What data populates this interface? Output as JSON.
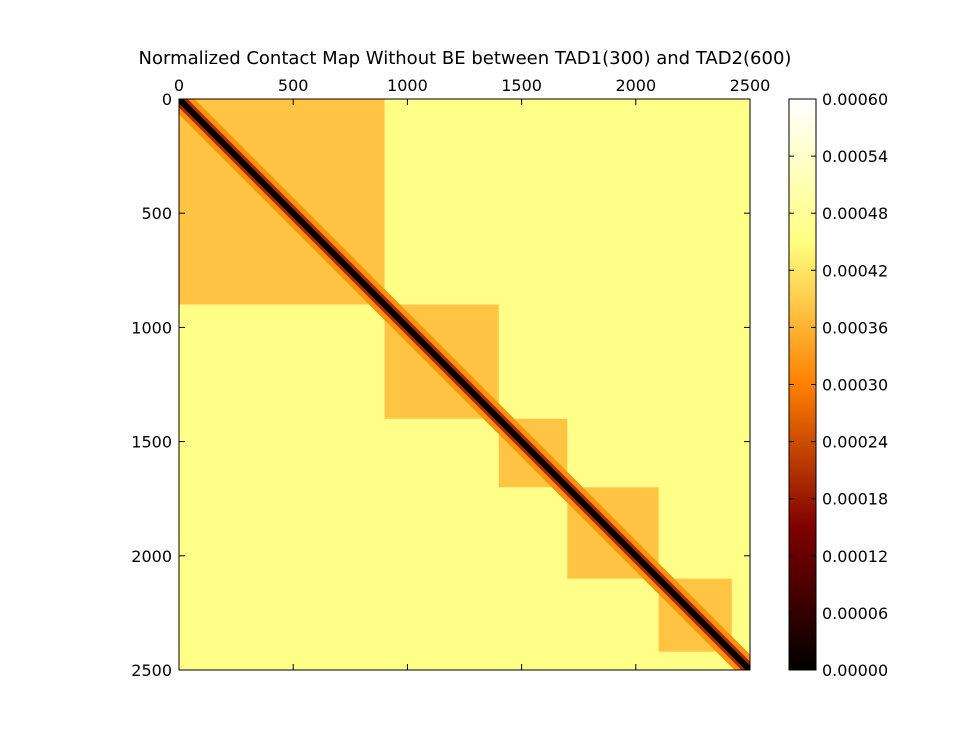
{
  "chart_data": {
    "type": "heatmap",
    "title": "Normalized Contact Map Without BE between TAD1(300) and TAD2(600)",
    "x_ticks": [
      "0",
      "500",
      "1000",
      "1500",
      "2000",
      "2500"
    ],
    "y_ticks": [
      "0",
      "500",
      "1000",
      "1500",
      "2000",
      "2500"
    ],
    "x_range": [
      0,
      2500
    ],
    "y_range": [
      0,
      2500
    ],
    "x_axis_position": "top",
    "y_axis_inverted": true,
    "colormap": "afmhot",
    "colorbar": {
      "range": [
        0.0,
        0.0006
      ],
      "ticks": [
        "0.00060",
        "0.00054",
        "0.00048",
        "0.00042",
        "0.00036",
        "0.00030",
        "0.00024",
        "0.00018",
        "0.00012",
        "0.00006",
        "0.00000"
      ]
    },
    "tad_blocks": [
      {
        "start": 0,
        "end": 900
      },
      {
        "start": 900,
        "end": 1400
      },
      {
        "start": 1400,
        "end": 1700
      },
      {
        "start": 1700,
        "end": 2100
      },
      {
        "start": 2100,
        "end": 2420
      }
    ],
    "values_approx": {
      "diagonal": 0.0,
      "near_diagonal": 0.0002,
      "within_tad": 0.00038,
      "background": 0.00046
    }
  }
}
